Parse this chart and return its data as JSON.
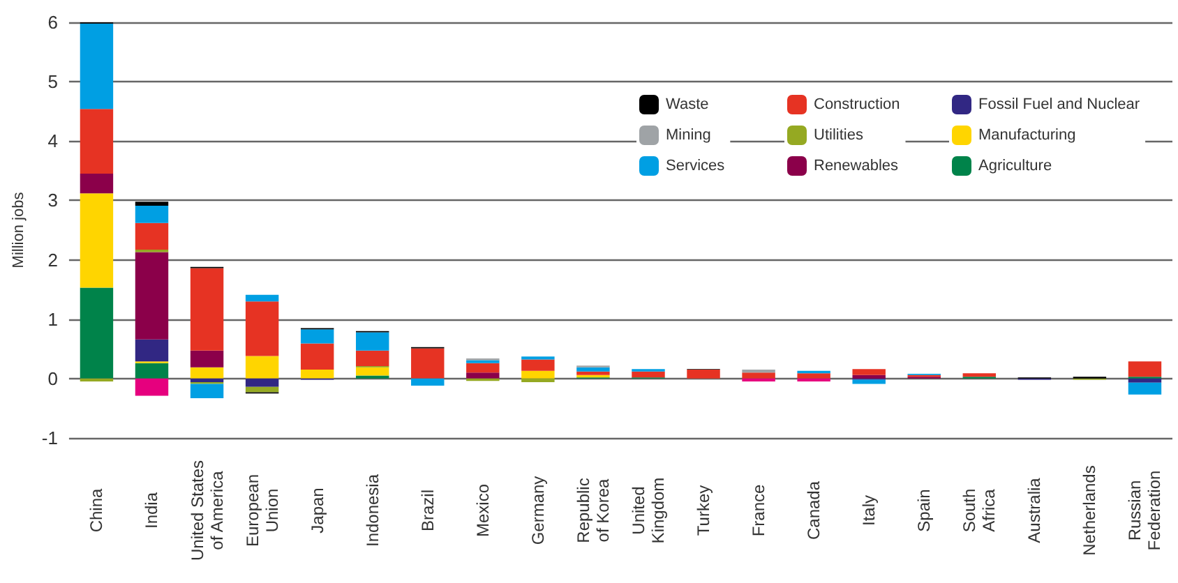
{
  "chart_data": {
    "type": "bar",
    "stacked": true,
    "ylabel": "Million jobs",
    "ylim": [
      -1,
      6
    ],
    "yticks": [
      -1,
      0,
      1,
      2,
      3,
      4,
      5,
      6
    ],
    "grid": "y",
    "legend": "top right",
    "categories": [
      "China",
      "India",
      "United States\nof America",
      "European\nUnion",
      "Japan",
      "Indonesia",
      "Brazil",
      "Mexico",
      "Germany",
      "Republic\nof Korea",
      "United\nKingdom",
      "Turkey",
      "France",
      "Canada",
      "Italy",
      "Spain",
      "South\nAfrica",
      "Australia",
      "Netherlands",
      "Russian\nFederation"
    ],
    "series": [
      {
        "name": "Agriculture",
        "color": "#00834a",
        "values": [
          1.53,
          0.26,
          null,
          null,
          null,
          0.05,
          null,
          null,
          null,
          0.02,
          0.02,
          null,
          null,
          null,
          null,
          null,
          0.03,
          null,
          null,
          0.03
        ]
      },
      {
        "name": "Manufacturing",
        "color": "#ffd500",
        "values": [
          1.59,
          0.03,
          0.19,
          0.38,
          0.15,
          0.14,
          null,
          null,
          0.13,
          0.04,
          null,
          null,
          null,
          null,
          null,
          null,
          null,
          null,
          null,
          null
        ]
      },
      {
        "name": "Fossil Fuel and Nuclear",
        "color": "#312783",
        "values": [
          null,
          0.37,
          -0.06,
          -0.14,
          -0.02,
          null,
          null,
          null,
          null,
          null,
          null,
          null,
          null,
          null,
          -0.02,
          null,
          null,
          -0.02,
          null,
          -0.07
        ]
      },
      {
        "name": "Renewables",
        "color": "#8b004a",
        "values": [
          0.33,
          1.47,
          0.28,
          null,
          null,
          null,
          null,
          0.1,
          null,
          null,
          null,
          null,
          null,
          null,
          0.06,
          0.03,
          null,
          null,
          null,
          null
        ]
      },
      {
        "name": "Utilities",
        "color": "#95a922",
        "values": [
          -0.05,
          0.04,
          -0.03,
          -0.09,
          null,
          0.02,
          null,
          -0.04,
          -0.06,
          null,
          null,
          null,
          null,
          null,
          null,
          null,
          null,
          null,
          -0.02,
          null
        ]
      },
      {
        "name": "Construction",
        "color": "#e63323",
        "values": [
          1.09,
          0.45,
          1.39,
          0.92,
          0.44,
          0.26,
          0.51,
          0.16,
          0.19,
          0.06,
          0.1,
          0.15,
          0.1,
          0.09,
          0.1,
          0.03,
          0.06,
          null,
          null,
          0.26
        ]
      },
      {
        "name": "Services",
        "color": "#009fe3",
        "values": [
          1.44,
          0.29,
          -0.24,
          0.11,
          0.24,
          0.31,
          -0.12,
          0.05,
          0.05,
          0.07,
          0.04,
          null,
          null,
          0.04,
          -0.07,
          0.02,
          null,
          null,
          null,
          -0.2
        ]
      },
      {
        "name": "Mining",
        "color": "#9fa3a6",
        "values": [
          null,
          null,
          null,
          null,
          null,
          null,
          null,
          0.03,
          null,
          0.03,
          null,
          null,
          0.05,
          null,
          null,
          null,
          null,
          null,
          null,
          null
        ]
      },
      {
        "name": "Waste",
        "color": "#000000",
        "values": [
          0.04,
          0.07,
          0.02,
          -0.02,
          0.02,
          0.02,
          0.02,
          null,
          null,
          null,
          null,
          0.01,
          null,
          null,
          null,
          null,
          null,
          0.02,
          0.03,
          null
        ]
      },
      {
        "color": "#e6007e",
        "values": [
          null,
          -0.29,
          null,
          null,
          null,
          null,
          null,
          null,
          null,
          null,
          null,
          null,
          -0.05,
          -0.05,
          null,
          null,
          null,
          null,
          null,
          null
        ]
      }
    ]
  }
}
